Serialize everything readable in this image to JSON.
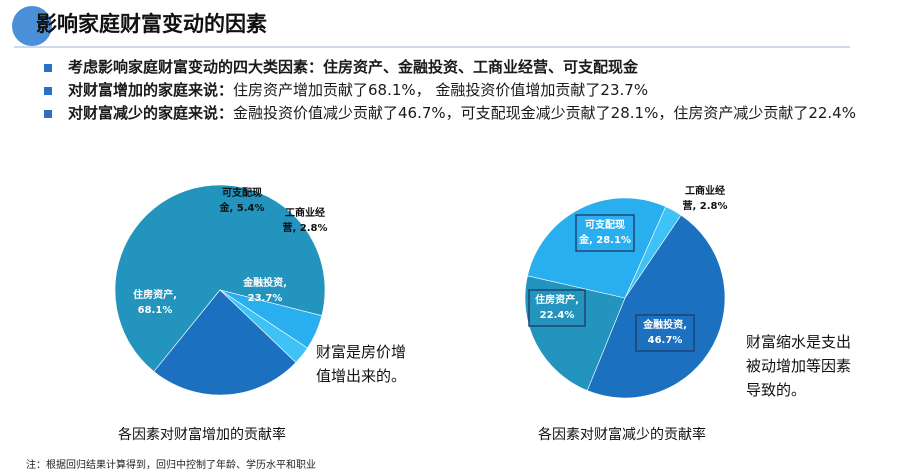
{
  "title": "影响家庭财富变动的因素",
  "bullets": [
    {
      "lead": "考虑影响家庭财富变动的四大类因素：",
      "text": "住房资产、金融投资、工商业经营、可支配现金",
      "bold_all": true
    },
    {
      "lead": "对财富增加的家庭来说：",
      "text": "住房资产增加贡献了68.1%， 金融投资价值增加贡献了23.7%"
    },
    {
      "lead": "对财富减少的家庭来说：",
      "text": "金融投资价值减少贡献了46.7%，可支配现金减少贡献了28.1%，住房资产减少贡献了22.4%"
    }
  ],
  "chart_data": [
    {
      "type": "pie",
      "caption": "各因素对财富增加的贡献率",
      "note": [
        "财富是房价增",
        "值增出来的。"
      ],
      "slices": [
        {
          "label": "住房资产,",
          "value_label": "68.1%",
          "value": 68.1,
          "color": "#2294be"
        },
        {
          "label": "可支配现",
          "label2": "金, 5.4%",
          "value": 5.4,
          "color": "#29aef0"
        },
        {
          "label": "工商业经",
          "label2": "营, 2.8%",
          "value": 2.8,
          "color": "#3fc2f5"
        },
        {
          "label": "金融投资,",
          "value_label": "23.7%",
          "value": 23.7,
          "color": "#1b70c0"
        }
      ]
    },
    {
      "type": "pie",
      "caption": "各因素对财富减少的贡献率",
      "note": [
        "财富缩水是支出",
        "被动增加等因素",
        "导致的。"
      ],
      "slices": [
        {
          "label": "工商业经",
          "label2": "营, 2.8%",
          "value": 2.8,
          "color": "#3fc2f5"
        },
        {
          "label": "金融投资,",
          "value_label": "46.7%",
          "value": 46.7,
          "color": "#1b70c0"
        },
        {
          "label": "住房资产,",
          "value_label": "22.4%",
          "value": 22.4,
          "color": "#2294be"
        },
        {
          "label": "可支配现",
          "value_label": "金, 28.1%",
          "value": 28.1,
          "color": "#29aef0"
        }
      ]
    }
  ],
  "footnote": "注：根据回归结果计算得到，回归中控制了年龄、学历水平和职业"
}
